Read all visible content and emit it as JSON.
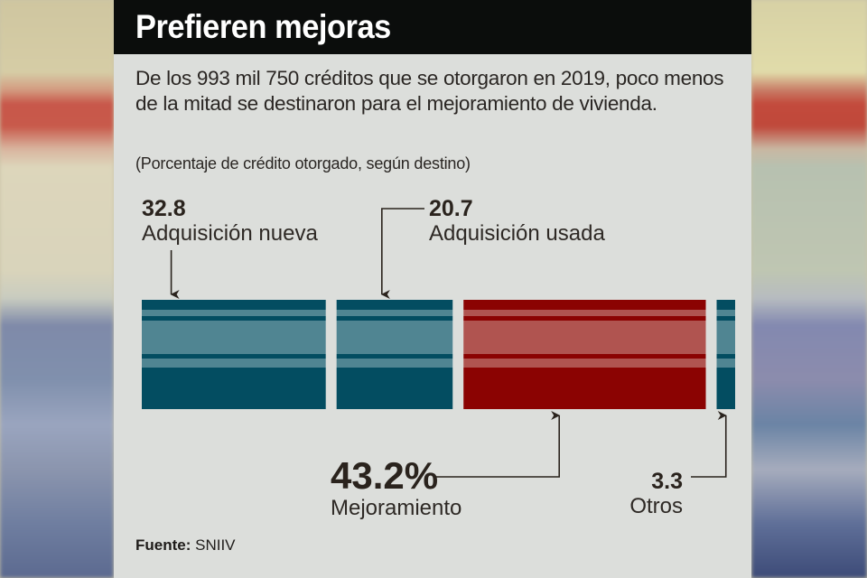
{
  "header": {
    "title": "Prefieren mejoras"
  },
  "description": "De los 993 mil 750 créditos que se otorgaron en 2019, poco menos de la mitad se destinaron  para el mejoramiento de vivienda.",
  "subtitle": "(Porcentaje de crédito otorgado, según destino)",
  "source": {
    "label": "Fuente:",
    "value": "SNIIV"
  },
  "colors": {
    "teal_dark": "#034d61",
    "teal_light": "#508592",
    "red_dark": "#8b0302",
    "red_light": "#b05450",
    "panel_bg": "#dcdedb",
    "header_bg": "#0b0d0c",
    "text": "#2a231d"
  },
  "labels": {
    "nueva": {
      "value": "32.8",
      "name": "Adquisición nueva"
    },
    "usada": {
      "value": "20.7",
      "name": "Adquisición usada"
    },
    "mejoramiento": {
      "value": "43.2%",
      "name": "Mejoramiento"
    },
    "otros": {
      "value": "3.3",
      "name": "Otros"
    }
  },
  "chart_data": {
    "type": "bar",
    "orientation": "horizontal-stacked",
    "title": "Prefieren mejoras",
    "subtitle": "(Porcentaje de crédito otorgado, según destino)",
    "unit": "%",
    "categories": [
      "Adquisición nueva",
      "Adquisición usada",
      "Mejoramiento",
      "Otros"
    ],
    "values": [
      32.8,
      20.7,
      43.2,
      3.3
    ],
    "series_colors": [
      "teal",
      "teal",
      "red",
      "teal"
    ],
    "xlim": [
      0,
      100
    ],
    "grid": false,
    "legend": "none",
    "source": "SNIIV"
  }
}
